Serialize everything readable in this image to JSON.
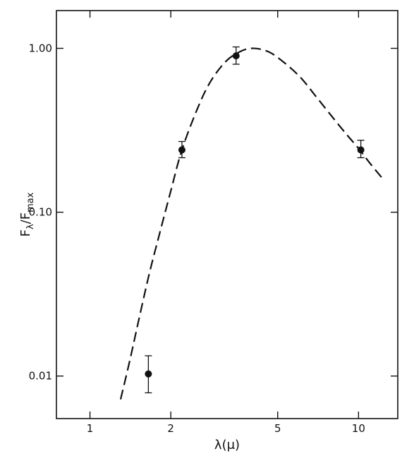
{
  "chart_data": {
    "type": "scatter",
    "title": "",
    "xlabel": "λ(μ)",
    "ylabel": {
      "main": "F",
      "sub_lambda": "λ",
      "slash": "/",
      "main2": "F",
      "sub_max": "max"
    },
    "xscale": "log",
    "yscale": "log",
    "xlim": [
      0.75,
      14
    ],
    "ylim": [
      0.0055,
      1.7
    ],
    "grid": false,
    "x_ticks": [
      {
        "value": 1,
        "label": "1"
      },
      {
        "value": 2,
        "label": "2"
      },
      {
        "value": 5,
        "label": "5"
      },
      {
        "value": 10,
        "label": "10"
      }
    ],
    "y_ticks": [
      {
        "value": 0.01,
        "label": "0.01"
      },
      {
        "value": 0.1,
        "label": "0.10"
      },
      {
        "value": 1.0,
        "label": "1.00"
      }
    ],
    "series": [
      {
        "style": "points-with-error-bars",
        "color": "#111111",
        "points": [
          {
            "x": 1.65,
            "y": 0.0103,
            "err_low": 0.0079,
            "err_high": 0.0133
          },
          {
            "x": 2.2,
            "y": 0.24,
            "err_low": 0.215,
            "err_high": 0.27
          },
          {
            "x": 3.5,
            "y": 0.9,
            "err_low": 0.8,
            "err_high": 1.02
          },
          {
            "x": 10.2,
            "y": 0.24,
            "err_low": 0.215,
            "err_high": 0.275
          }
        ]
      },
      {
        "style": "dashed-curve",
        "color": "#111111",
        "points": [
          {
            "x": 1.3,
            "y": 0.0072
          },
          {
            "x": 1.4,
            "y": 0.012
          },
          {
            "x": 1.5,
            "y": 0.02
          },
          {
            "x": 1.65,
            "y": 0.04
          },
          {
            "x": 1.8,
            "y": 0.07
          },
          {
            "x": 2.0,
            "y": 0.135
          },
          {
            "x": 2.2,
            "y": 0.24
          },
          {
            "x": 2.5,
            "y": 0.42
          },
          {
            "x": 2.8,
            "y": 0.62
          },
          {
            "x": 3.2,
            "y": 0.83
          },
          {
            "x": 3.6,
            "y": 0.95
          },
          {
            "x": 4.0,
            "y": 1.0
          },
          {
            "x": 4.5,
            "y": 0.97
          },
          {
            "x": 5.0,
            "y": 0.88
          },
          {
            "x": 6.0,
            "y": 0.68
          },
          {
            "x": 7.0,
            "y": 0.5
          },
          {
            "x": 8.0,
            "y": 0.38
          },
          {
            "x": 9.0,
            "y": 0.3
          },
          {
            "x": 10.0,
            "y": 0.245
          },
          {
            "x": 11.0,
            "y": 0.2
          },
          {
            "x": 12.5,
            "y": 0.155
          }
        ]
      }
    ]
  }
}
